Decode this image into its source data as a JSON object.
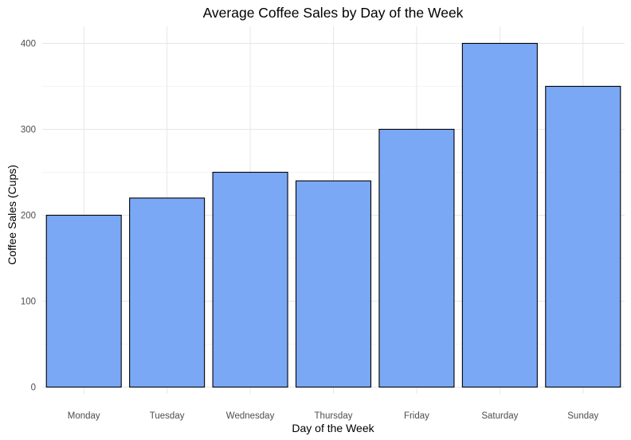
{
  "chart_data": {
    "type": "bar",
    "title": "Average Coffee Sales by Day of the Week",
    "xlabel": "Day of the Week",
    "ylabel": "Coffee Sales (Cups)",
    "categories": [
      "Monday",
      "Tuesday",
      "Wednesday",
      "Thursday",
      "Friday",
      "Saturday",
      "Sunday"
    ],
    "values": [
      200,
      220,
      250,
      240,
      300,
      400,
      350
    ],
    "ylim": [
      0,
      430
    ],
    "yticks": [
      0,
      100,
      200,
      300,
      400
    ],
    "grid": true,
    "bar_fill": "#7aa8f5",
    "bar_stroke": "#000000"
  }
}
